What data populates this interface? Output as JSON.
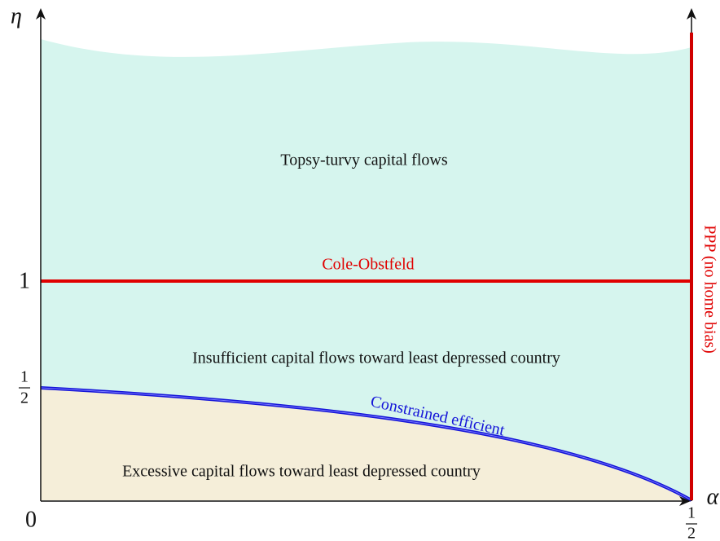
{
  "axes": {
    "y_label": "η",
    "x_label": "α",
    "origin": "0",
    "y_tick_one": "1",
    "y_tick_half": {
      "numerator": "1",
      "denominator": "2"
    },
    "x_tick_half": {
      "numerator": "1",
      "denominator": "2"
    }
  },
  "regions": {
    "top": "Topsy-turvy capital flows",
    "middle": "Insufficient capital flows toward least depressed country",
    "bottom": "Excessive capital flows toward least depressed country"
  },
  "lines": {
    "horizontal": "Cole-Obstfeld",
    "curve": "Constrained efficient",
    "vertical": "PPP (no home bias)"
  }
}
